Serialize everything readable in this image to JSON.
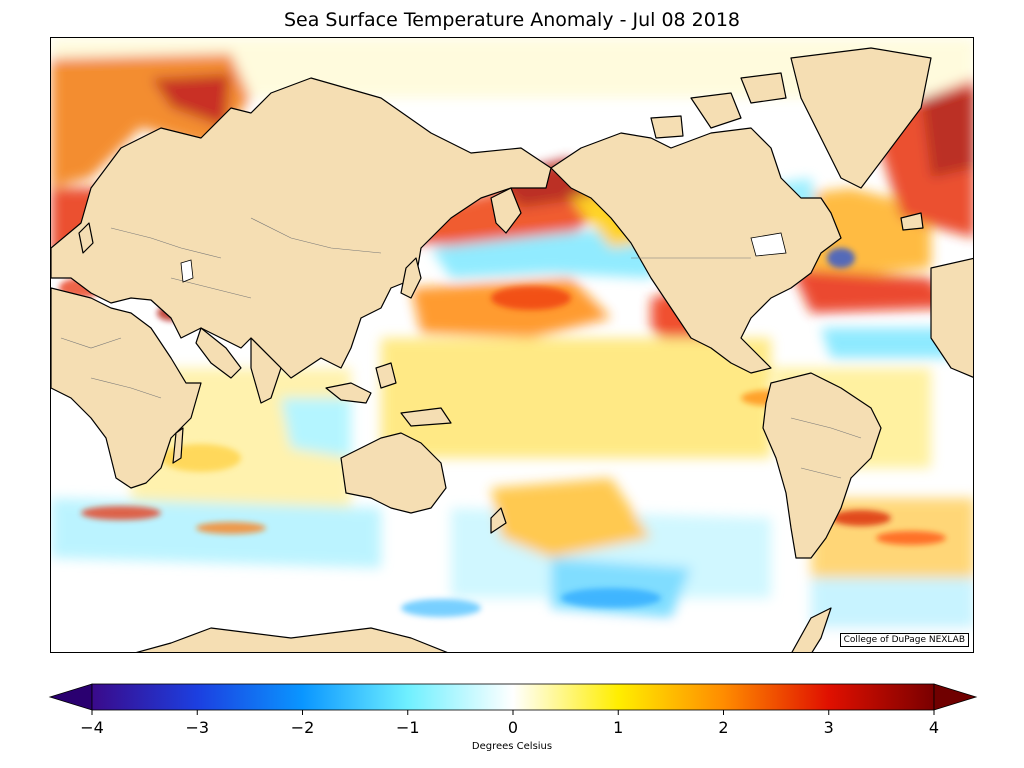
{
  "title": "Sea Surface Temperature Anomaly - Jul 08 2018",
  "credit": "College of DuPage NEXLAB",
  "colorbar": {
    "label": "Degrees Celsius",
    "ticks": [
      "−4",
      "−3",
      "−2",
      "−1",
      "0",
      "1",
      "2",
      "3",
      "4"
    ],
    "min": -4,
    "max": 4,
    "stops": [
      {
        "v": -4.0,
        "c": "#3a0a8a"
      },
      {
        "v": -3.0,
        "c": "#1c3fe0"
      },
      {
        "v": -2.0,
        "c": "#0a96ff"
      },
      {
        "v": -1.0,
        "c": "#6ff0ff"
      },
      {
        "v": 0.0,
        "c": "#ffffff"
      },
      {
        "v": 1.0,
        "c": "#ffee00"
      },
      {
        "v": 2.0,
        "c": "#ff8c00"
      },
      {
        "v": 3.0,
        "c": "#e01000"
      },
      {
        "v": 4.0,
        "c": "#7a0000"
      }
    ]
  },
  "colors": {
    "land": "#f5deb3",
    "coast": "#000000"
  }
}
